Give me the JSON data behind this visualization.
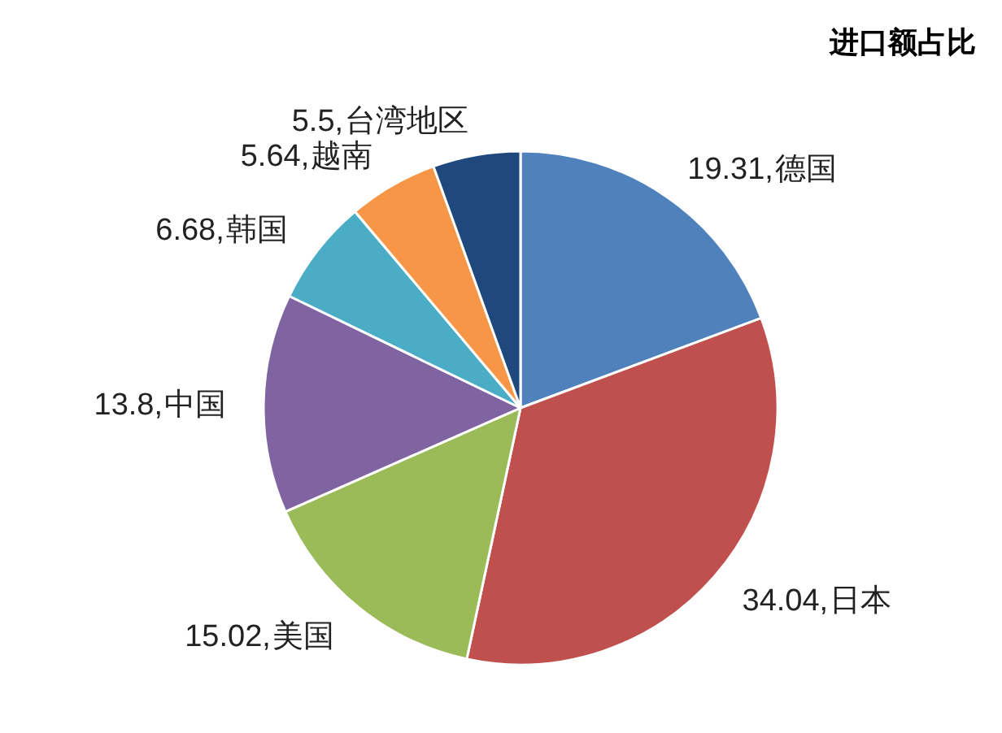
{
  "chart_data": {
    "type": "pie",
    "title": "进口额占比",
    "categories": [
      "德国",
      "日本",
      "美国",
      "中国",
      "韩国",
      "越南",
      "台湾地区"
    ],
    "values": [
      19.31,
      34.04,
      15.02,
      13.8,
      6.68,
      5.64,
      5.5
    ],
    "colors": [
      "#4f81bd",
      "#c0504d",
      "#9bbb59",
      "#8064a2",
      "#4bacc6",
      "#f79646",
      "#1f497d"
    ],
    "value_labels": [
      "19.31,",
      "34.04,",
      "15.02,",
      "13.8,",
      "6.68,",
      "5.64,",
      "5.5,"
    ]
  }
}
